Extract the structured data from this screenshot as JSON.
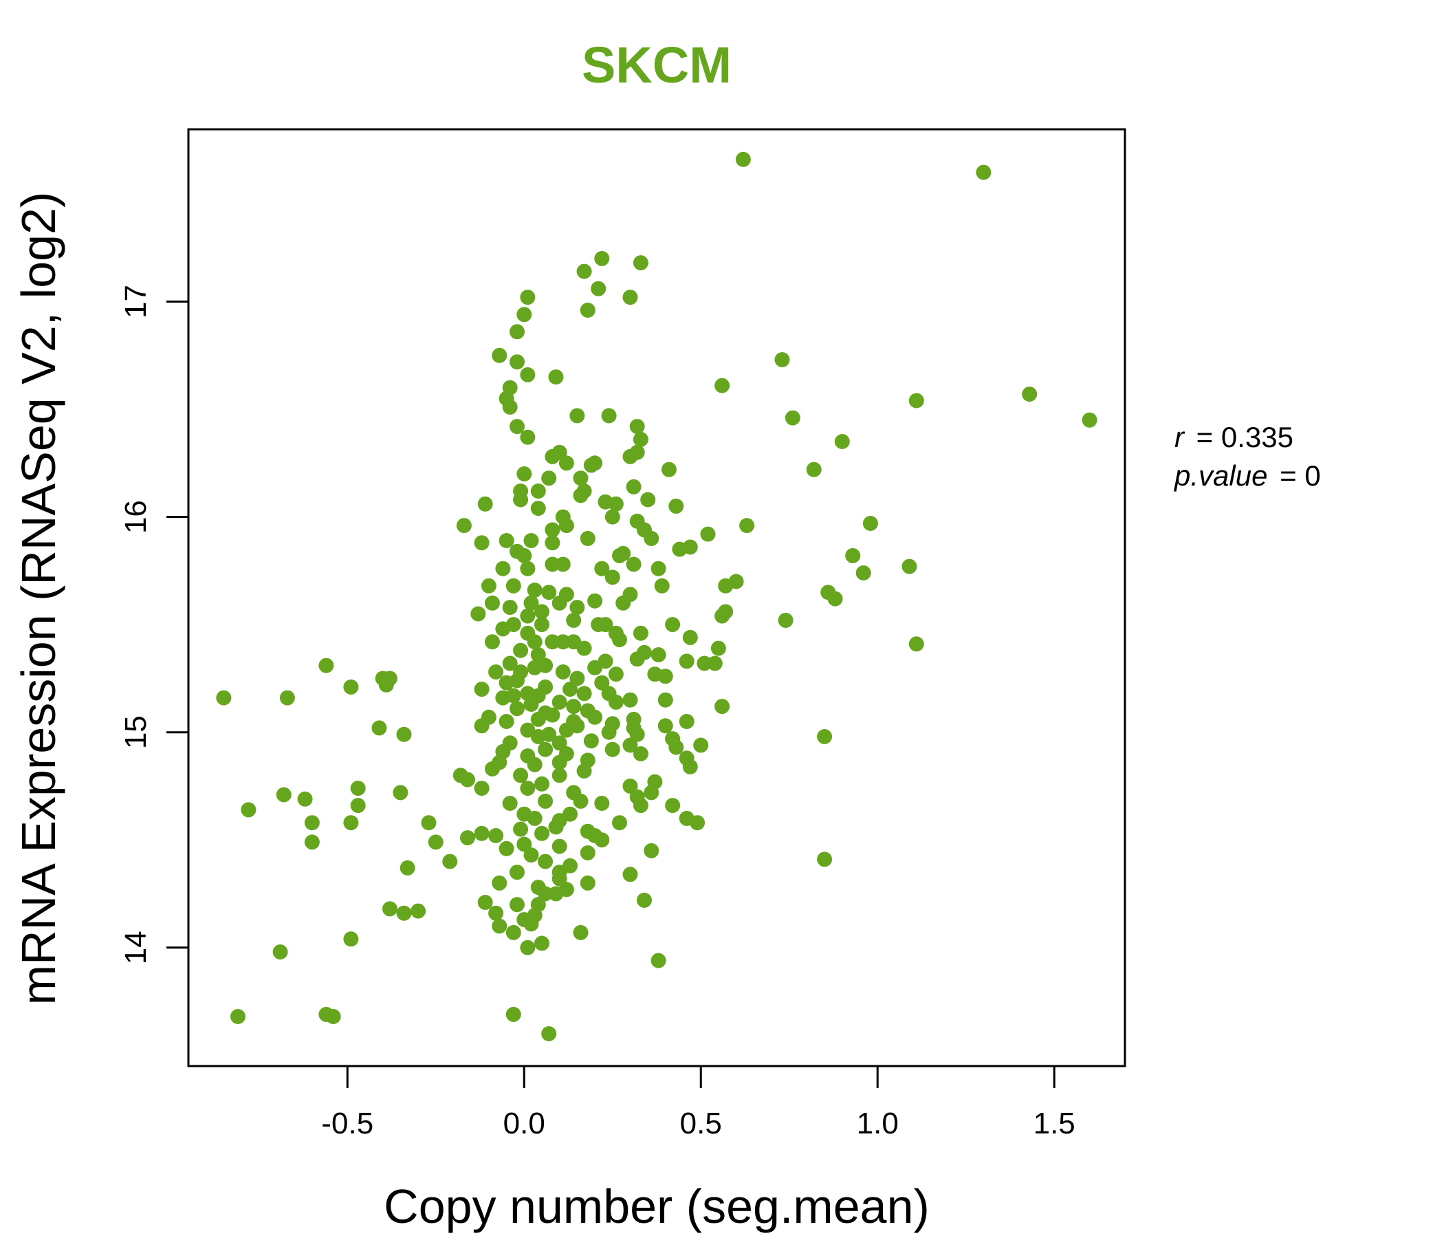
{
  "chart_data": {
    "type": "scatter",
    "title": "SKCM",
    "xlabel": "Copy number (seg.mean)",
    "ylabel": "mRNA Expression (RNASeq V2, log2)",
    "xlim": [
      -0.95,
      1.7
    ],
    "ylim": [
      13.45,
      17.8
    ],
    "xticks": [
      -0.5,
      0.0,
      0.5,
      1.0,
      1.5
    ],
    "xtick_labels": [
      "-0.5",
      "0.0",
      "0.5",
      "1.0",
      "1.5"
    ],
    "yticks": [
      14,
      15,
      16,
      17
    ],
    "ytick_labels": [
      "14",
      "15",
      "16",
      "17"
    ],
    "point_color": "#66a61e",
    "stats": {
      "r_label": "r",
      "r_value": "0.335",
      "p_label": "p.value",
      "p_value": "0"
    },
    "points": [
      [
        0.62,
        17.66
      ],
      [
        1.3,
        17.6
      ],
      [
        0.22,
        17.2
      ],
      [
        0.33,
        17.18
      ],
      [
        0.17,
        17.14
      ],
      [
        0.21,
        17.06
      ],
      [
        0.3,
        17.02
      ],
      [
        0.01,
        17.02
      ],
      [
        0.18,
        16.96
      ],
      [
        0.0,
        16.94
      ],
      [
        -0.02,
        16.86
      ],
      [
        -0.07,
        16.75
      ],
      [
        -0.02,
        16.72
      ],
      [
        0.73,
        16.73
      ],
      [
        0.01,
        16.66
      ],
      [
        0.09,
        16.65
      ],
      [
        -0.04,
        16.6
      ],
      [
        0.56,
        16.61
      ],
      [
        -0.05,
        16.55
      ],
      [
        -0.04,
        16.51
      ],
      [
        1.11,
        16.54
      ],
      [
        1.43,
        16.57
      ],
      [
        0.15,
        16.47
      ],
      [
        0.24,
        16.47
      ],
      [
        0.76,
        16.46
      ],
      [
        1.6,
        16.45
      ],
      [
        -0.02,
        16.42
      ],
      [
        0.32,
        16.42
      ],
      [
        0.33,
        16.36
      ],
      [
        0.01,
        16.37
      ],
      [
        0.9,
        16.35
      ],
      [
        0.32,
        16.3
      ],
      [
        0.1,
        16.3
      ],
      [
        0.08,
        16.28
      ],
      [
        0.3,
        16.28
      ],
      [
        0.12,
        16.25
      ],
      [
        0.19,
        16.24
      ],
      [
        0.2,
        16.25
      ],
      [
        0.41,
        16.22
      ],
      [
        0.82,
        16.22
      ],
      [
        0.0,
        16.2
      ],
      [
        0.07,
        16.18
      ],
      [
        0.16,
        16.18
      ],
      [
        0.17,
        16.12
      ],
      [
        0.04,
        16.12
      ],
      [
        -0.01,
        16.12
      ],
      [
        0.31,
        16.14
      ],
      [
        0.16,
        16.1
      ],
      [
        -0.01,
        16.08
      ],
      [
        0.23,
        16.07
      ],
      [
        -0.11,
        16.06
      ],
      [
        0.26,
        16.06
      ],
      [
        0.43,
        16.05
      ],
      [
        0.35,
        16.08
      ],
      [
        0.04,
        16.04
      ],
      [
        0.11,
        16.0
      ],
      [
        0.25,
        16.0
      ],
      [
        -0.17,
        15.96
      ],
      [
        0.12,
        15.96
      ],
      [
        0.32,
        15.98
      ],
      [
        0.08,
        15.94
      ],
      [
        0.34,
        15.94
      ],
      [
        0.98,
        15.97
      ],
      [
        0.63,
        15.96
      ],
      [
        0.52,
        15.92
      ],
      [
        0.36,
        15.9
      ],
      [
        -0.05,
        15.89
      ],
      [
        0.02,
        15.89
      ],
      [
        0.18,
        15.9
      ],
      [
        0.08,
        15.88
      ],
      [
        -0.12,
        15.88
      ],
      [
        0.47,
        15.86
      ],
      [
        0.44,
        15.85
      ],
      [
        0.28,
        15.83
      ],
      [
        0.0,
        15.82
      ],
      [
        -0.02,
        15.84
      ],
      [
        0.27,
        15.82
      ],
      [
        0.93,
        15.82
      ],
      [
        0.31,
        15.78
      ],
      [
        0.11,
        15.78
      ],
      [
        0.08,
        15.78
      ],
      [
        0.22,
        15.76
      ],
      [
        0.38,
        15.76
      ],
      [
        -0.06,
        15.76
      ],
      [
        0.01,
        15.76
      ],
      [
        1.09,
        15.77
      ],
      [
        0.96,
        15.74
      ],
      [
        0.25,
        15.72
      ],
      [
        0.6,
        15.7
      ],
      [
        0.57,
        15.68
      ],
      [
        -0.1,
        15.68
      ],
      [
        -0.03,
        15.68
      ],
      [
        0.03,
        15.66
      ],
      [
        0.39,
        15.68
      ],
      [
        0.86,
        15.65
      ],
      [
        0.07,
        15.65
      ],
      [
        0.12,
        15.64
      ],
      [
        0.3,
        15.64
      ],
      [
        0.2,
        15.61
      ],
      [
        0.88,
        15.62
      ],
      [
        -0.09,
        15.6
      ],
      [
        0.1,
        15.6
      ],
      [
        0.02,
        15.6
      ],
      [
        0.28,
        15.6
      ],
      [
        0.15,
        15.58
      ],
      [
        -0.04,
        15.58
      ],
      [
        0.05,
        15.56
      ],
      [
        0.57,
        15.56
      ],
      [
        -0.13,
        15.55
      ],
      [
        0.56,
        15.54
      ],
      [
        0.01,
        15.54
      ],
      [
        0.74,
        15.52
      ],
      [
        0.14,
        15.52
      ],
      [
        0.23,
        15.5
      ],
      [
        0.42,
        15.5
      ],
      [
        0.21,
        15.5
      ],
      [
        0.05,
        15.5
      ],
      [
        -0.03,
        15.5
      ],
      [
        -0.06,
        15.48
      ],
      [
        0.01,
        15.46
      ],
      [
        0.26,
        15.46
      ],
      [
        0.33,
        15.46
      ],
      [
        0.47,
        15.44
      ],
      [
        0.27,
        15.43
      ],
      [
        0.08,
        15.42
      ],
      [
        0.11,
        15.42
      ],
      [
        0.14,
        15.42
      ],
      [
        0.03,
        15.42
      ],
      [
        -0.09,
        15.42
      ],
      [
        0.55,
        15.39
      ],
      [
        0.17,
        15.39
      ],
      [
        -0.01,
        15.38
      ],
      [
        1.11,
        15.41
      ],
      [
        0.38,
        15.36
      ],
      [
        0.04,
        15.36
      ],
      [
        0.34,
        15.37
      ],
      [
        0.32,
        15.34
      ],
      [
        0.23,
        15.33
      ],
      [
        0.46,
        15.33
      ],
      [
        0.54,
        15.32
      ],
      [
        0.51,
        15.32
      ],
      [
        -0.04,
        15.32
      ],
      [
        0.06,
        15.31
      ],
      [
        -0.56,
        15.31
      ],
      [
        0.2,
        15.3
      ],
      [
        0.03,
        15.3
      ],
      [
        -0.01,
        15.28
      ],
      [
        0.11,
        15.28
      ],
      [
        0.26,
        15.27
      ],
      [
        -0.08,
        15.28
      ],
      [
        0.37,
        15.27
      ],
      [
        0.4,
        15.26
      ],
      [
        -0.4,
        15.25
      ],
      [
        -0.38,
        15.25
      ],
      [
        0.15,
        15.25
      ],
      [
        -0.02,
        15.24
      ],
      [
        -0.05,
        15.23
      ],
      [
        0.22,
        15.23
      ],
      [
        -0.39,
        15.22
      ],
      [
        -0.49,
        15.21
      ],
      [
        0.06,
        15.21
      ],
      [
        -0.12,
        15.2
      ],
      [
        0.13,
        15.2
      ],
      [
        0.01,
        15.18
      ],
      [
        0.17,
        15.18
      ],
      [
        0.24,
        15.18
      ],
      [
        -0.03,
        15.17
      ],
      [
        0.04,
        15.17
      ],
      [
        -0.06,
        15.16
      ],
      [
        -0.85,
        15.16
      ],
      [
        -0.67,
        15.16
      ],
      [
        0.3,
        15.15
      ],
      [
        0.4,
        15.15
      ],
      [
        0.26,
        15.14
      ],
      [
        0.1,
        15.14
      ],
      [
        0.02,
        15.13
      ],
      [
        0.56,
        15.12
      ],
      [
        0.14,
        15.12
      ],
      [
        -0.02,
        15.11
      ],
      [
        0.18,
        15.1
      ],
      [
        0.06,
        15.09
      ],
      [
        0.08,
        15.08
      ],
      [
        0.2,
        15.07
      ],
      [
        -0.1,
        15.07
      ],
      [
        0.31,
        15.06
      ],
      [
        0.04,
        15.06
      ],
      [
        0.46,
        15.05
      ],
      [
        -0.05,
        15.05
      ],
      [
        0.14,
        15.05
      ],
      [
        0.25,
        15.04
      ],
      [
        0.15,
        15.03
      ],
      [
        -0.12,
        15.03
      ],
      [
        0.4,
        15.03
      ],
      [
        0.31,
        15.02
      ],
      [
        -0.41,
        15.02
      ],
      [
        0.01,
        15.01
      ],
      [
        0.12,
        15.01
      ],
      [
        0.24,
        15.0
      ],
      [
        0.07,
        14.99
      ],
      [
        0.32,
        14.99
      ],
      [
        -0.34,
        14.99
      ],
      [
        0.04,
        14.98
      ],
      [
        0.85,
        14.98
      ],
      [
        0.42,
        14.97
      ],
      [
        0.19,
        14.96
      ],
      [
        -0.04,
        14.95
      ],
      [
        0.1,
        14.95
      ],
      [
        0.3,
        14.94
      ],
      [
        0.5,
        14.94
      ],
      [
        0.43,
        14.93
      ],
      [
        0.25,
        14.92
      ],
      [
        0.06,
        14.92
      ],
      [
        -0.06,
        14.91
      ],
      [
        0.12,
        14.9
      ],
      [
        0.33,
        14.9
      ],
      [
        0.01,
        14.89
      ],
      [
        0.46,
        14.88
      ],
      [
        0.18,
        14.87
      ],
      [
        -0.07,
        14.86
      ],
      [
        0.1,
        14.86
      ],
      [
        0.03,
        14.85
      ],
      [
        -0.09,
        14.83
      ],
      [
        0.17,
        14.82
      ],
      [
        0.47,
        14.84
      ],
      [
        -0.01,
        14.8
      ],
      [
        0.1,
        14.8
      ],
      [
        -0.18,
        14.8
      ],
      [
        -0.16,
        14.78
      ],
      [
        0.37,
        14.77
      ],
      [
        0.05,
        14.76
      ],
      [
        0.3,
        14.75
      ],
      [
        -0.12,
        14.74
      ],
      [
        0.01,
        14.74
      ],
      [
        -0.47,
        14.74
      ],
      [
        0.14,
        14.72
      ],
      [
        -0.35,
        14.72
      ],
      [
        0.36,
        14.72
      ],
      [
        0.32,
        14.7
      ],
      [
        -0.68,
        14.71
      ],
      [
        -0.62,
        14.69
      ],
      [
        0.06,
        14.68
      ],
      [
        0.16,
        14.68
      ],
      [
        -0.04,
        14.67
      ],
      [
        0.22,
        14.67
      ],
      [
        0.42,
        14.66
      ],
      [
        0.33,
        14.66
      ],
      [
        -0.47,
        14.66
      ],
      [
        -0.78,
        14.64
      ],
      [
        0.0,
        14.62
      ],
      [
        0.13,
        14.62
      ],
      [
        0.03,
        14.6
      ],
      [
        0.46,
        14.6
      ],
      [
        0.1,
        14.59
      ],
      [
        -0.27,
        14.58
      ],
      [
        0.27,
        14.58
      ],
      [
        0.49,
        14.58
      ],
      [
        -0.49,
        14.58
      ],
      [
        -0.6,
        14.58
      ],
      [
        0.09,
        14.56
      ],
      [
        -0.01,
        14.55
      ],
      [
        0.18,
        14.54
      ],
      [
        0.05,
        14.53
      ],
      [
        -0.12,
        14.53
      ],
      [
        0.2,
        14.52
      ],
      [
        -0.08,
        14.52
      ],
      [
        -0.16,
        14.51
      ],
      [
        0.22,
        14.5
      ],
      [
        -0.25,
        14.49
      ],
      [
        -0.6,
        14.49
      ],
      [
        0.0,
        14.48
      ],
      [
        0.1,
        14.47
      ],
      [
        -0.05,
        14.46
      ],
      [
        0.36,
        14.45
      ],
      [
        0.18,
        14.44
      ],
      [
        0.02,
        14.43
      ],
      [
        0.85,
        14.41
      ],
      [
        -0.21,
        14.4
      ],
      [
        0.06,
        14.4
      ],
      [
        0.13,
        14.38
      ],
      [
        -0.33,
        14.37
      ],
      [
        0.1,
        14.35
      ],
      [
        -0.02,
        14.35
      ],
      [
        0.3,
        14.34
      ],
      [
        0.1,
        14.32
      ],
      [
        0.18,
        14.3
      ],
      [
        -0.07,
        14.3
      ],
      [
        0.04,
        14.28
      ],
      [
        0.12,
        14.27
      ],
      [
        0.06,
        14.25
      ],
      [
        0.09,
        14.25
      ],
      [
        0.34,
        14.22
      ],
      [
        -0.11,
        14.21
      ],
      [
        -0.02,
        14.2
      ],
      [
        0.04,
        14.2
      ],
      [
        -0.38,
        14.18
      ],
      [
        -0.3,
        14.17
      ],
      [
        -0.34,
        14.16
      ],
      [
        -0.08,
        14.16
      ],
      [
        0.03,
        14.15
      ],
      [
        0.0,
        14.13
      ],
      [
        0.02,
        14.11
      ],
      [
        -0.07,
        14.1
      ],
      [
        -0.03,
        14.07
      ],
      [
        0.16,
        14.07
      ],
      [
        -0.49,
        14.04
      ],
      [
        0.05,
        14.02
      ],
      [
        0.01,
        14.0
      ],
      [
        -0.69,
        13.98
      ],
      [
        0.38,
        13.94
      ],
      [
        -0.81,
        13.68
      ],
      [
        -0.56,
        13.69
      ],
      [
        -0.54,
        13.68
      ],
      [
        -0.03,
        13.69
      ],
      [
        0.07,
        13.6
      ]
    ]
  }
}
